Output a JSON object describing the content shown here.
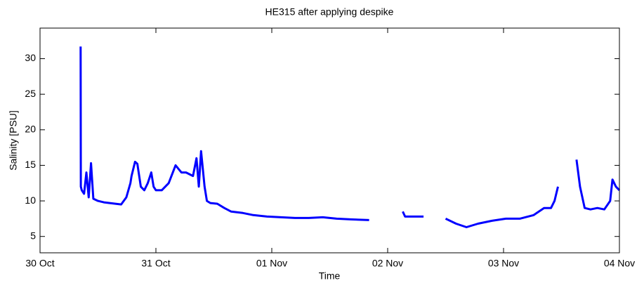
{
  "chart_data": {
    "type": "line",
    "title": "HE315 after applying despike",
    "xlabel": "Time",
    "ylabel": "Salinity [PSU]",
    "x": [
      0.35,
      0.352,
      0.36,
      0.38,
      0.4,
      0.42,
      0.44,
      0.46,
      0.5,
      0.55,
      0.6,
      0.7,
      0.745,
      0.78,
      0.79,
      0.82,
      0.84,
      0.87,
      0.9,
      0.93,
      0.96,
      0.98,
      1.0,
      1.05,
      1.11,
      1.17,
      1.22,
      1.26,
      1.32,
      1.35,
      1.37,
      1.39,
      1.42,
      1.44,
      1.47,
      1.53,
      1.59,
      1.65,
      1.75,
      1.84,
      1.96,
      2.08,
      2.2,
      2.32,
      2.44,
      2.56,
      2.68,
      2.84,
      3.0,
      3.13,
      3.15,
      3.23,
      3.31,
      3.4,
      3.5,
      3.59,
      3.68,
      3.78,
      3.9,
      4.02,
      4.14,
      4.26,
      4.35,
      4.41,
      4.44,
      4.47,
      4.55,
      4.63,
      4.66,
      4.7,
      4.75,
      4.81,
      4.87,
      4.92,
      4.94,
      4.97,
      5.0
    ],
    "series": [
      {
        "name": "Salinity",
        "color": "#0000ff",
        "values": [
          31.7,
          12,
          11.5,
          11,
          14,
          10.5,
          15.3,
          10.3,
          10,
          9.8,
          9.7,
          9.5,
          10.5,
          12.5,
          13.5,
          15.5,
          15.2,
          12,
          11.5,
          12.5,
          14,
          12,
          11.5,
          11.5,
          12.5,
          15,
          14,
          14,
          13.5,
          16,
          12,
          17,
          12,
          10,
          9.7,
          9.6,
          9,
          8.5,
          8.3,
          8,
          7.8,
          7.7,
          7.6,
          7.6,
          7.7,
          7.5,
          7.4,
          7.3,
          null,
          8.5,
          7.8,
          7.8,
          7.8,
          null,
          7.5,
          6.8,
          6.3,
          6.8,
          7.2,
          7.5,
          7.5,
          8,
          9,
          9,
          10,
          12,
          null,
          15.8,
          12,
          9,
          8.8,
          9,
          8.8,
          10,
          13,
          12,
          11.5
        ]
      }
    ],
    "xlim": [
      0,
      5
    ],
    "xticks": [
      {
        "value": 0,
        "label": "30 Oct"
      },
      {
        "value": 1,
        "label": "31 Oct"
      },
      {
        "value": 2,
        "label": "01 Nov"
      },
      {
        "value": 3,
        "label": "02 Nov"
      },
      {
        "value": 4,
        "label": "03 Nov"
      },
      {
        "value": 5,
        "label": "04 Nov"
      }
    ],
    "ylim": [
      2.7,
      34.3
    ],
    "yticks": [
      5,
      10,
      15,
      20,
      25,
      30
    ]
  }
}
